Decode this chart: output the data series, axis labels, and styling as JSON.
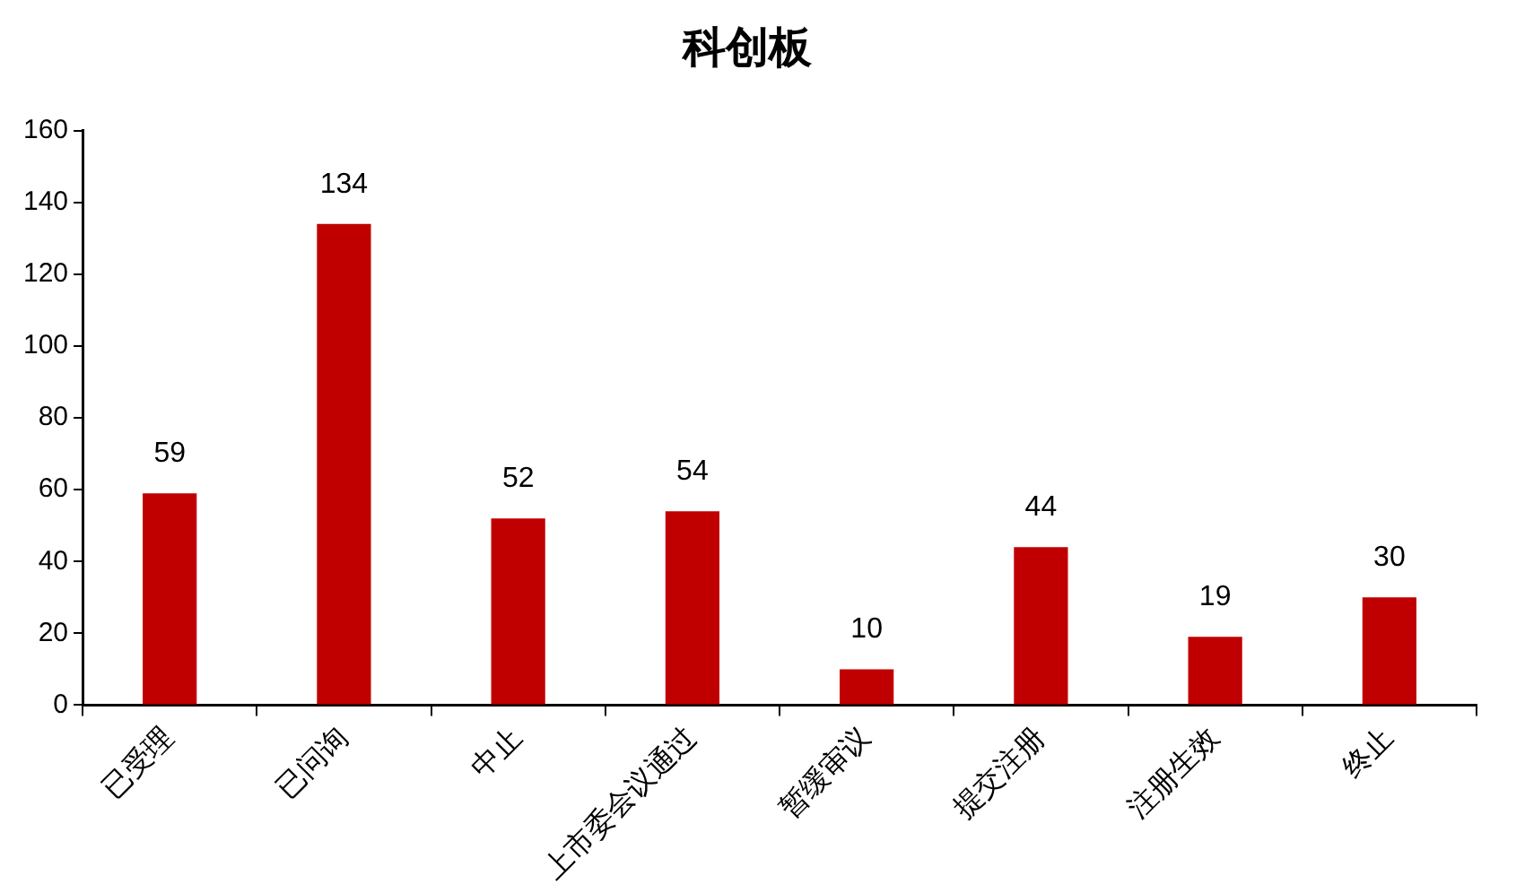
{
  "chart_data": {
    "type": "bar",
    "title": "科创板",
    "categories": [
      "已受理",
      "已问询",
      "中止",
      "上市委会议通过",
      "暂缓审议",
      "提交注册",
      "注册生效",
      "终止"
    ],
    "values": [
      59,
      134,
      52,
      54,
      10,
      44,
      19,
      30
    ],
    "color": "#c00000",
    "ylim": [
      0,
      160
    ],
    "yticks": [
      0,
      20,
      40,
      60,
      80,
      100,
      120,
      140,
      160
    ],
    "grid": false,
    "legend": false,
    "data_labels": true
  }
}
